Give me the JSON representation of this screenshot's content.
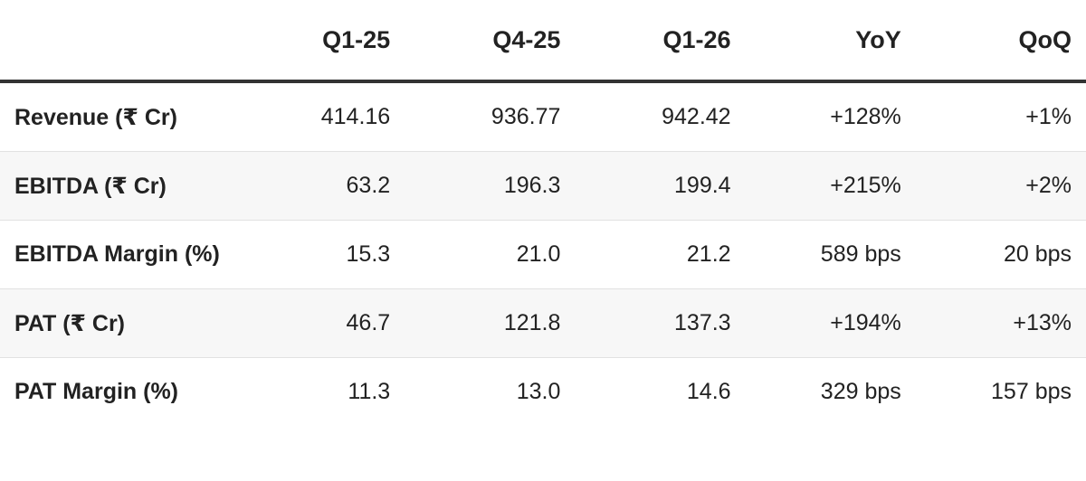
{
  "table": {
    "header": [
      "",
      "Q1-25",
      "Q4-25",
      "Q1-26",
      "YoY",
      "QoQ"
    ],
    "rows": [
      [
        "Revenue (₹ Cr)",
        "414.16",
        "936.77",
        "942.42",
        "+128%",
        "+1%"
      ],
      [
        "EBITDA (₹ Cr)",
        "63.2",
        "196.3",
        "199.4",
        "+215%",
        "+2%"
      ],
      [
        "EBITDA Margin (%)",
        "15.3",
        "21.0",
        "21.2",
        "589 bps",
        "20 bps"
      ],
      [
        "PAT (₹ Cr)",
        "46.7",
        "121.8",
        "137.3",
        "+194%",
        "+13%"
      ],
      [
        "PAT Margin (%)",
        "11.3",
        "13.0",
        "14.6",
        "329 bps",
        "157 bps"
      ]
    ]
  }
}
